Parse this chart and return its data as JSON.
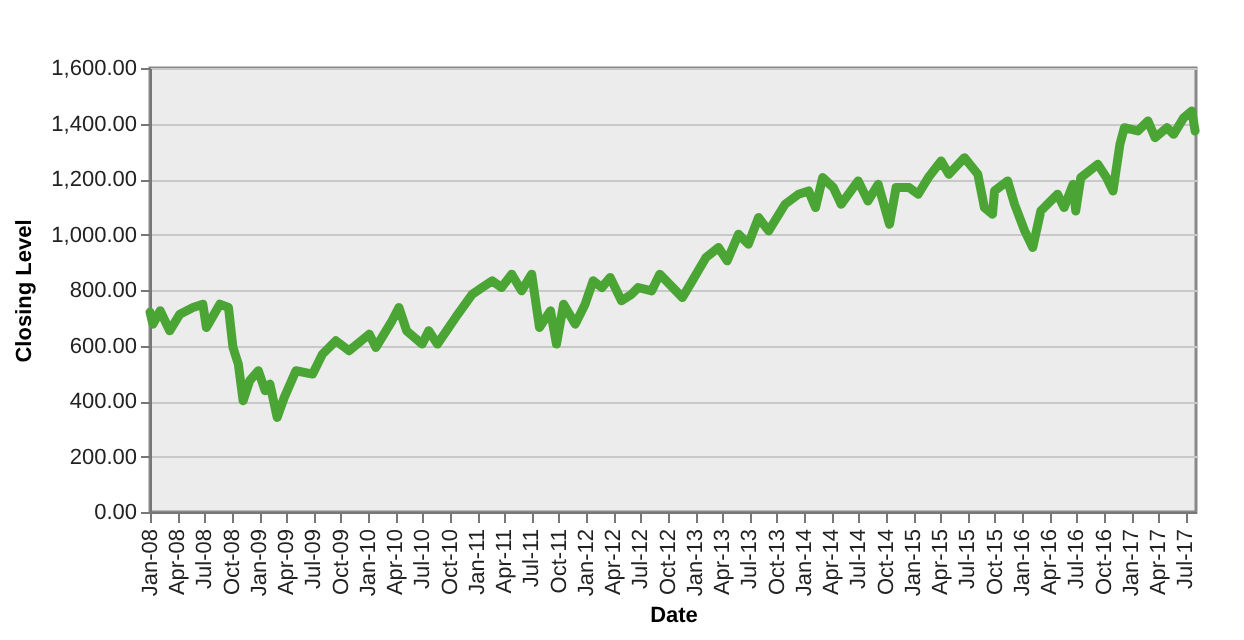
{
  "chart_data": {
    "type": "line",
    "xlabel": "Date",
    "ylabel": "Closing Level",
    "grid": "y",
    "marker": "none",
    "line_style": "solid",
    "x": [
      "2008-01-01",
      "2008-01-11",
      "2008-02-04",
      "2008-03-07",
      "2008-04-10",
      "2008-05-24",
      "2008-06-26",
      "2008-07-08",
      "2008-08-22",
      "2008-09-20",
      "2008-10-05",
      "2008-10-23",
      "2008-11-08",
      "2008-11-30",
      "2008-12-29",
      "2009-01-21",
      "2009-02-06",
      "2009-03-02",
      "2009-03-26",
      "2009-05-04",
      "2009-06-29",
      "2009-08-01",
      "2009-09-15",
      "2009-10-29",
      "2010-01-05",
      "2010-01-27",
      "2010-03-22",
      "2010-04-14",
      "2010-05-10",
      "2010-07-01",
      "2010-07-23",
      "2010-08-21",
      "2010-10-21",
      "2010-12-16",
      "2011-01-18",
      "2011-02-21",
      "2011-03-24",
      "2011-04-27",
      "2011-05-30",
      "2011-07-03",
      "2011-07-29",
      "2011-09-04",
      "2011-09-24",
      "2011-10-18",
      "2011-11-26",
      "2011-12-29",
      "2012-01-25",
      "2012-02-23",
      "2012-03-22",
      "2012-04-29",
      "2012-06-02",
      "2012-06-24",
      "2012-08-08",
      "2012-09-04",
      "2012-11-19",
      "2012-12-22",
      "2013-02-06",
      "2013-03-20",
      "2013-04-18",
      "2013-05-26",
      "2013-06-28",
      "2013-08-01",
      "2013-09-04",
      "2013-10-29",
      "2013-12-13",
      "2014-01-16",
      "2014-02-08",
      "2014-03-04",
      "2014-04-09",
      "2014-05-05",
      "2014-07-01",
      "2014-08-03",
      "2014-09-06",
      "2014-10-14",
      "2014-11-05",
      "2014-12-19",
      "2015-01-18",
      "2015-02-21",
      "2015-04-05",
      "2015-05-01",
      "2015-06-22",
      "2015-08-06",
      "2015-08-28",
      "2015-09-24",
      "2015-10-01",
      "2015-11-14",
      "2015-12-07",
      "2016-01-10",
      "2016-02-06",
      "2016-03-04",
      "2016-04-29",
      "2016-05-21",
      "2016-06-20",
      "2016-06-29",
      "2016-07-16",
      "2016-09-11",
      "2016-10-10",
      "2016-11-01",
      "2016-11-24",
      "2016-12-09",
      "2017-01-23",
      "2017-02-26",
      "2017-03-22",
      "2017-05-01",
      "2017-05-23",
      "2017-06-26",
      "2017-07-23",
      "2017-08-03"
    ],
    "series": [
      {
        "color": "#4aa535",
        "values": [
          720,
          677,
          725,
          653,
          713,
          737,
          749,
          665,
          749,
          737,
          593,
          533,
          401,
          473,
          509,
          437,
          461,
          341,
          413,
          509,
          497,
          569,
          617,
          581,
          641,
          593,
          689,
          737,
          653,
          605,
          653,
          605,
          701,
          785,
          809,
          833,
          809,
          857,
          797,
          857,
          665,
          725,
          605,
          749,
          677,
          749,
          833,
          809,
          845,
          761,
          785,
          809,
          797,
          857,
          773,
          833,
          917,
          953,
          905,
          1001,
          965,
          1061,
          1013,
          1109,
          1145,
          1157,
          1097,
          1205,
          1169,
          1109,
          1193,
          1121,
          1181,
          1037,
          1169,
          1169,
          1145,
          1205,
          1265,
          1217,
          1277,
          1217,
          1097,
          1073,
          1157,
          1193,
          1109,
          1013,
          953,
          1085,
          1145,
          1097,
          1181,
          1085,
          1205,
          1253,
          1205,
          1157,
          1325,
          1385,
          1373,
          1409,
          1349,
          1385,
          1361,
          1421,
          1445,
          1373
        ]
      }
    ],
    "xlim": [
      "2008-01-01",
      "2017-08-06"
    ],
    "xticks": [
      {
        "value": "2008-01-01",
        "label": "Jan-08"
      },
      {
        "value": "2008-04-01",
        "label": "Apr-08"
      },
      {
        "value": "2008-07-01",
        "label": "Jul-08"
      },
      {
        "value": "2008-10-01",
        "label": "Oct-08"
      },
      {
        "value": "2009-01-01",
        "label": "Jan-09"
      },
      {
        "value": "2009-04-01",
        "label": "Apr-09"
      },
      {
        "value": "2009-07-01",
        "label": "Jul-09"
      },
      {
        "value": "2009-10-01",
        "label": "Oct-09"
      },
      {
        "value": "2010-01-01",
        "label": "Jan-10"
      },
      {
        "value": "2010-04-01",
        "label": "Apr-10"
      },
      {
        "value": "2010-07-01",
        "label": "Jul-10"
      },
      {
        "value": "2010-10-01",
        "label": "Oct-10"
      },
      {
        "value": "2011-01-01",
        "label": "Jan-11"
      },
      {
        "value": "2011-04-01",
        "label": "Apr-11"
      },
      {
        "value": "2011-07-01",
        "label": "Jul-11"
      },
      {
        "value": "2011-10-01",
        "label": "Oct-11"
      },
      {
        "value": "2012-01-01",
        "label": "Jan-12"
      },
      {
        "value": "2012-04-01",
        "label": "Apr-12"
      },
      {
        "value": "2012-07-01",
        "label": "Jul-12"
      },
      {
        "value": "2012-10-01",
        "label": "Oct-12"
      },
      {
        "value": "2013-01-01",
        "label": "Jan-13"
      },
      {
        "value": "2013-04-01",
        "label": "Apr-13"
      },
      {
        "value": "2013-07-01",
        "label": "Jul-13"
      },
      {
        "value": "2013-10-01",
        "label": "Oct-13"
      },
      {
        "value": "2014-01-01",
        "label": "Jan-14"
      },
      {
        "value": "2014-04-01",
        "label": "Apr-14"
      },
      {
        "value": "2014-07-01",
        "label": "Jul-14"
      },
      {
        "value": "2014-10-01",
        "label": "Oct-14"
      },
      {
        "value": "2015-01-01",
        "label": "Jan-15"
      },
      {
        "value": "2015-04-01",
        "label": "Apr-15"
      },
      {
        "value": "2015-07-01",
        "label": "Jul-15"
      },
      {
        "value": "2015-10-01",
        "label": "Oct-15"
      },
      {
        "value": "2016-01-01",
        "label": "Jan-16"
      },
      {
        "value": "2016-04-01",
        "label": "Apr-16"
      },
      {
        "value": "2016-07-01",
        "label": "Jul-16"
      },
      {
        "value": "2016-10-01",
        "label": "Oct-16"
      },
      {
        "value": "2017-01-01",
        "label": "Jan-17"
      },
      {
        "value": "2017-04-01",
        "label": "Apr-17"
      },
      {
        "value": "2017-07-01",
        "label": "Jul-17"
      }
    ],
    "ylim": [
      0,
      1600
    ],
    "yticks": [
      {
        "value": 0,
        "label": "0.00"
      },
      {
        "value": 200,
        "label": "200.00"
      },
      {
        "value": 400,
        "label": "400.00"
      },
      {
        "value": 600,
        "label": "600.00"
      },
      {
        "value": 800,
        "label": "800.00"
      },
      {
        "value": 1000,
        "label": "1,000.00"
      },
      {
        "value": 1200,
        "label": "1,200.00"
      },
      {
        "value": 1400,
        "label": "1,400.00"
      },
      {
        "value": 1600,
        "label": "1,600.00"
      }
    ]
  }
}
